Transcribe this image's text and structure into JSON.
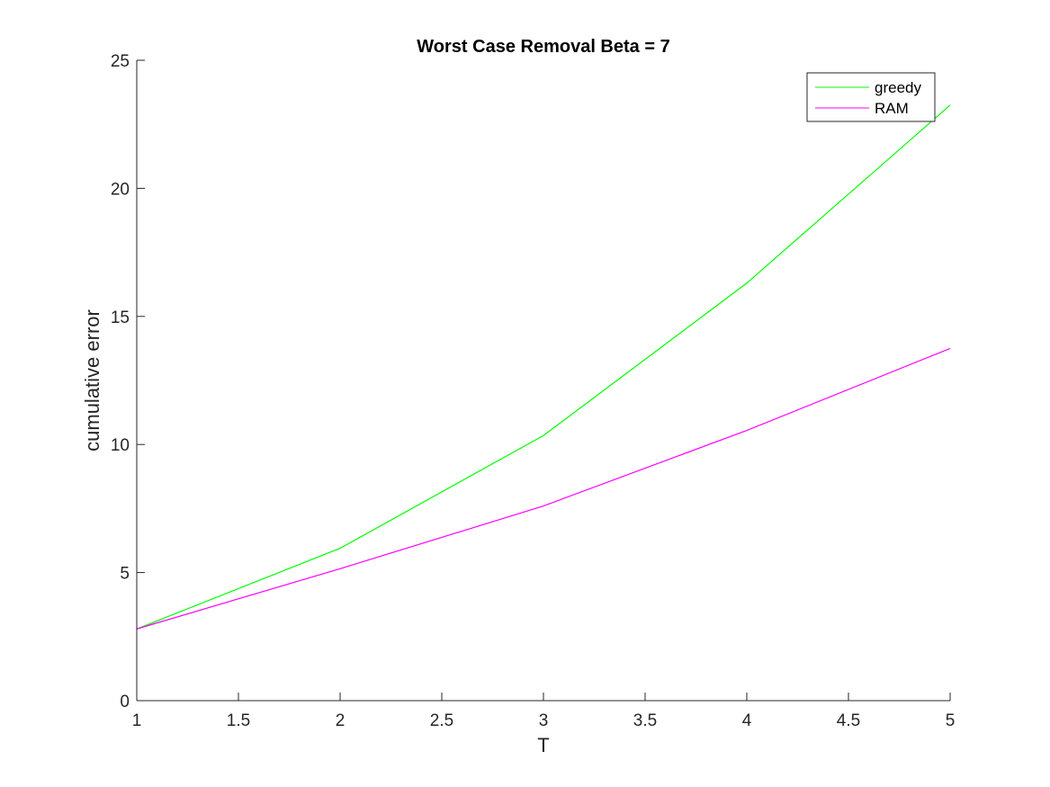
{
  "chart_data": {
    "type": "line",
    "title": "Worst Case Removal Beta = 7",
    "xlabel": "T",
    "ylabel": "cumulative error",
    "xlim": [
      1,
      5
    ],
    "ylim": [
      0,
      25
    ],
    "x_ticks": [
      1,
      1.5,
      2,
      2.5,
      3,
      3.5,
      4,
      4.5,
      5
    ],
    "x_tick_labels": [
      "1",
      "1.5",
      "2",
      "2.5",
      "3",
      "3.5",
      "4",
      "4.5",
      "5"
    ],
    "y_ticks": [
      0,
      5,
      10,
      15,
      20,
      25
    ],
    "y_tick_labels": [
      "0",
      "5",
      "10",
      "15",
      "20",
      "25"
    ],
    "grid": false,
    "legend_position": "top-right",
    "x": [
      1,
      2,
      3,
      4,
      5
    ],
    "series": [
      {
        "name": "greedy",
        "color": "#00ff00",
        "values": [
          2.8,
          5.95,
          10.35,
          16.3,
          23.25
        ]
      },
      {
        "name": "RAM",
        "color": "#ff00ff",
        "values": [
          2.8,
          5.15,
          7.6,
          10.55,
          13.75
        ]
      }
    ]
  }
}
